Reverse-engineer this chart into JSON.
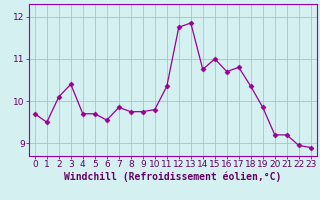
{
  "x": [
    0,
    1,
    2,
    3,
    4,
    5,
    6,
    7,
    8,
    9,
    10,
    11,
    12,
    13,
    14,
    15,
    16,
    17,
    18,
    19,
    20,
    21,
    22,
    23
  ],
  "y": [
    9.7,
    9.5,
    10.1,
    10.4,
    9.7,
    9.7,
    9.55,
    9.85,
    9.75,
    9.75,
    9.8,
    10.35,
    11.75,
    11.85,
    10.75,
    11.0,
    10.7,
    10.8,
    10.35,
    9.85,
    9.2,
    9.2,
    8.95,
    8.9
  ],
  "line_color": "#990099",
  "marker": "D",
  "marker_size": 2.5,
  "bg_color": "#d4f0f0",
  "grid_color": "#a0c8c8",
  "xlabel": "Windchill (Refroidissement éolien,°C)",
  "xlabel_color": "#660066",
  "tick_color": "#660066",
  "ylim": [
    8.7,
    12.3
  ],
  "yticks": [
    9,
    10,
    11,
    12
  ],
  "xlim": [
    -0.5,
    23.5
  ],
  "xticks": [
    0,
    1,
    2,
    3,
    4,
    5,
    6,
    7,
    8,
    9,
    10,
    11,
    12,
    13,
    14,
    15,
    16,
    17,
    18,
    19,
    20,
    21,
    22,
    23
  ],
  "xtick_labels": [
    "0",
    "1",
    "2",
    "3",
    "4",
    "5",
    "6",
    "7",
    "8",
    "9",
    "10",
    "11",
    "12",
    "13",
    "14",
    "15",
    "16",
    "17",
    "18",
    "19",
    "20",
    "21",
    "22",
    "23"
  ],
  "border_color": "#9900aa",
  "label_fontsize": 7,
  "tick_fontsize": 6.5
}
